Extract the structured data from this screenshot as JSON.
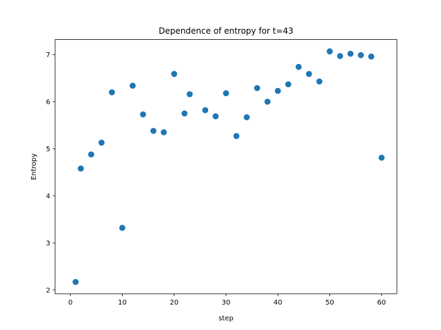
{
  "chart_data": {
    "type": "scatter",
    "title": "Dependence of entropy for t=43",
    "xlabel": "step",
    "ylabel": "Entropy",
    "xlim": [
      -2.95,
      62.95
    ],
    "ylim": [
      1.92,
      7.32
    ],
    "xticks": [
      0,
      10,
      20,
      30,
      40,
      50,
      60
    ],
    "yticks": [
      2,
      3,
      4,
      5,
      6,
      7
    ],
    "grid": false,
    "marker_color": "#1f77b4",
    "series": [
      {
        "x": [
          1,
          2,
          4,
          6,
          8,
          10,
          12,
          14,
          16,
          18,
          20,
          22,
          23,
          26,
          28,
          30,
          32,
          34,
          36,
          38,
          40,
          42,
          44,
          46,
          48,
          50,
          52,
          54,
          56,
          58,
          60
        ],
        "y": [
          2.17,
          4.58,
          4.88,
          5.13,
          6.2,
          3.32,
          6.34,
          5.73,
          5.38,
          5.35,
          6.59,
          5.75,
          6.16,
          5.82,
          5.69,
          6.18,
          5.27,
          5.67,
          6.29,
          6.0,
          6.23,
          6.37,
          6.74,
          6.59,
          6.43,
          7.07,
          6.97,
          7.02,
          6.99,
          6.96,
          4.81
        ]
      }
    ]
  }
}
